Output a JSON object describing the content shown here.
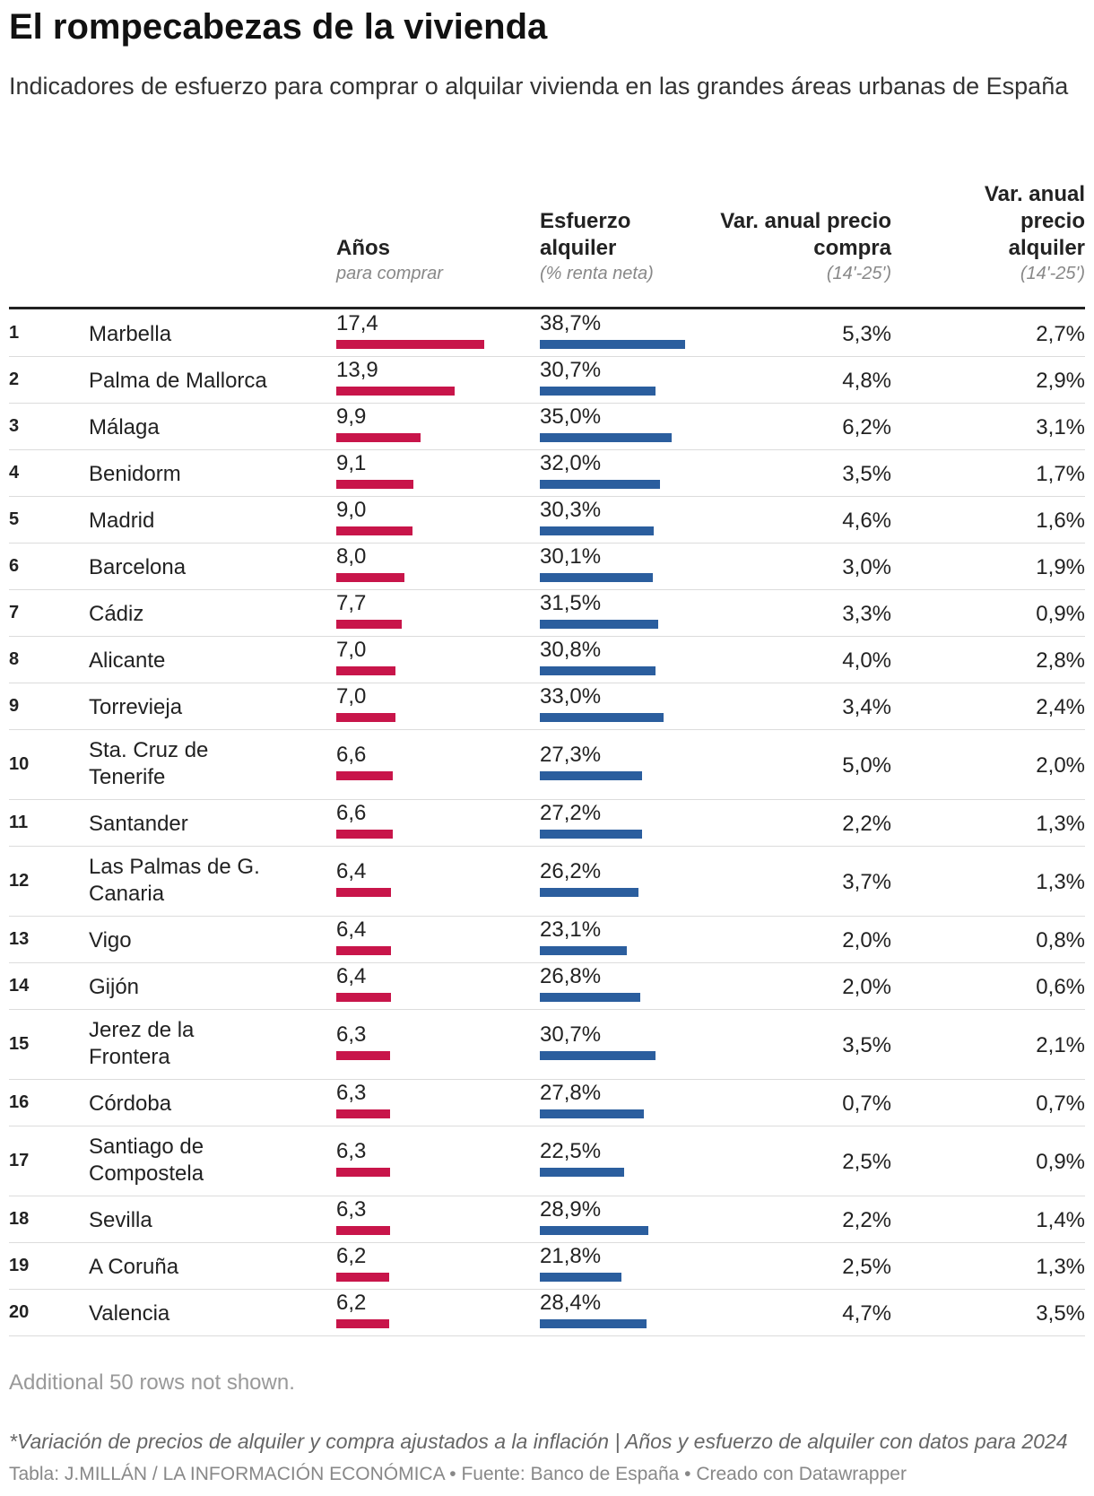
{
  "title": "El rompecabezas de la vivienda",
  "subtitle": "Indicadores de esfuerzo para comprar o alquilar vivienda en las grandes áreas urbanas de España",
  "columns": {
    "years": {
      "label": "Años",
      "sub": "para comprar"
    },
    "rent": {
      "label": "Esfuerzo alquiler",
      "sub": "(% renta neta)"
    },
    "buy_var": {
      "label": "Var. anual precio compra",
      "sub": "(14'-25')"
    },
    "rent_var": {
      "label": "Var. anual precio alquiler",
      "sub": "(14'-25')"
    }
  },
  "colors": {
    "years_bar": "#c8154a",
    "rent_bar": "#2b5e9e"
  },
  "chart_data": {
    "type": "table",
    "rows": [
      {
        "rank": "1",
        "city": "Marbella",
        "years": 17.4,
        "years_label": "17,4",
        "rent": 38.7,
        "rent_label": "38,7%",
        "buy_var": "5,3%",
        "rent_var": "2,7%"
      },
      {
        "rank": "2",
        "city": "Palma de Mallorca",
        "years": 13.9,
        "years_label": "13,9",
        "rent": 30.7,
        "rent_label": "30,7%",
        "buy_var": "4,8%",
        "rent_var": "2,9%"
      },
      {
        "rank": "3",
        "city": "Málaga",
        "years": 9.9,
        "years_label": "9,9",
        "rent": 35.0,
        "rent_label": "35,0%",
        "buy_var": "6,2%",
        "rent_var": "3,1%"
      },
      {
        "rank": "4",
        "city": "Benidorm",
        "years": 9.1,
        "years_label": "9,1",
        "rent": 32.0,
        "rent_label": "32,0%",
        "buy_var": "3,5%",
        "rent_var": "1,7%"
      },
      {
        "rank": "5",
        "city": "Madrid",
        "years": 9.0,
        "years_label": "9,0",
        "rent": 30.3,
        "rent_label": "30,3%",
        "buy_var": "4,6%",
        "rent_var": "1,6%"
      },
      {
        "rank": "6",
        "city": "Barcelona",
        "years": 8.0,
        "years_label": "8,0",
        "rent": 30.1,
        "rent_label": "30,1%",
        "buy_var": "3,0%",
        "rent_var": "1,9%"
      },
      {
        "rank": "7",
        "city": "Cádiz",
        "years": 7.7,
        "years_label": "7,7",
        "rent": 31.5,
        "rent_label": "31,5%",
        "buy_var": "3,3%",
        "rent_var": "0,9%"
      },
      {
        "rank": "8",
        "city": "Alicante",
        "years": 7.0,
        "years_label": "7,0",
        "rent": 30.8,
        "rent_label": "30,8%",
        "buy_var": "4,0%",
        "rent_var": "2,8%"
      },
      {
        "rank": "9",
        "city": "Torrevieja",
        "years": 7.0,
        "years_label": "7,0",
        "rent": 33.0,
        "rent_label": "33,0%",
        "buy_var": "3,4%",
        "rent_var": "2,4%"
      },
      {
        "rank": "10",
        "city": "Sta. Cruz de Tenerife",
        "years": 6.6,
        "years_label": "6,6",
        "rent": 27.3,
        "rent_label": "27,3%",
        "buy_var": "5,0%",
        "rent_var": "2,0%"
      },
      {
        "rank": "11",
        "city": "Santander",
        "years": 6.6,
        "years_label": "6,6",
        "rent": 27.2,
        "rent_label": "27,2%",
        "buy_var": "2,2%",
        "rent_var": "1,3%"
      },
      {
        "rank": "12",
        "city": "Las Palmas de G. Canaria",
        "years": 6.4,
        "years_label": "6,4",
        "rent": 26.2,
        "rent_label": "26,2%",
        "buy_var": "3,7%",
        "rent_var": "1,3%"
      },
      {
        "rank": "13",
        "city": "Vigo",
        "years": 6.4,
        "years_label": "6,4",
        "rent": 23.1,
        "rent_label": "23,1%",
        "buy_var": "2,0%",
        "rent_var": "0,8%"
      },
      {
        "rank": "14",
        "city": "Gijón",
        "years": 6.4,
        "years_label": "6,4",
        "rent": 26.8,
        "rent_label": "26,8%",
        "buy_var": "2,0%",
        "rent_var": "0,6%"
      },
      {
        "rank": "15",
        "city": "Jerez de la Frontera",
        "years": 6.3,
        "years_label": "6,3",
        "rent": 30.7,
        "rent_label": "30,7%",
        "buy_var": "3,5%",
        "rent_var": "2,1%"
      },
      {
        "rank": "16",
        "city": "Córdoba",
        "years": 6.3,
        "years_label": "6,3",
        "rent": 27.8,
        "rent_label": "27,8%",
        "buy_var": "0,7%",
        "rent_var": "0,7%"
      },
      {
        "rank": "17",
        "city": "Santiago de Compostela",
        "years": 6.3,
        "years_label": "6,3",
        "rent": 22.5,
        "rent_label": "22,5%",
        "buy_var": "2,5%",
        "rent_var": "0,9%"
      },
      {
        "rank": "18",
        "city": "Sevilla",
        "years": 6.3,
        "years_label": "6,3",
        "rent": 28.9,
        "rent_label": "28,9%",
        "buy_var": "2,2%",
        "rent_var": "1,4%"
      },
      {
        "rank": "19",
        "city": "A Coruña",
        "years": 6.2,
        "years_label": "6,2",
        "rent": 21.8,
        "rent_label": "21,8%",
        "buy_var": "2,5%",
        "rent_var": "1,3%"
      },
      {
        "rank": "20",
        "city": "Valencia",
        "years": 6.2,
        "years_label": "6,2",
        "rent": 28.4,
        "rent_label": "28,4%",
        "buy_var": "4,7%",
        "rent_var": "3,5%"
      }
    ]
  },
  "more_rows": "Additional 50 rows not shown.",
  "footnote": "*Variación de precios de alquiler y compra ajustados a la inflación | Años y esfuerzo de alquiler con datos para 2024",
  "credits": "Tabla: J.MILLÁN / LA INFORMACIÓN ECONÓMICA • Fuente: Banco de España • Creado con Datawrapper"
}
